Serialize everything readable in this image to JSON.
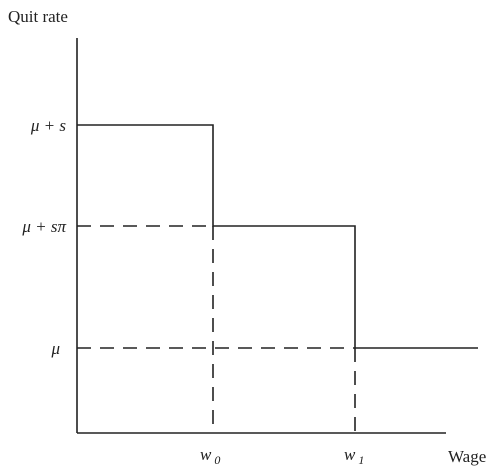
{
  "y_axis_label": "Quit rate",
  "x_axis_label": "Wage",
  "y_levels": [
    "μ + s",
    "μ + sπ",
    "μ"
  ],
  "x_marks": [
    {
      "text": "w",
      "subscript": "0"
    },
    {
      "text": "w",
      "subscript": "1"
    }
  ]
}
